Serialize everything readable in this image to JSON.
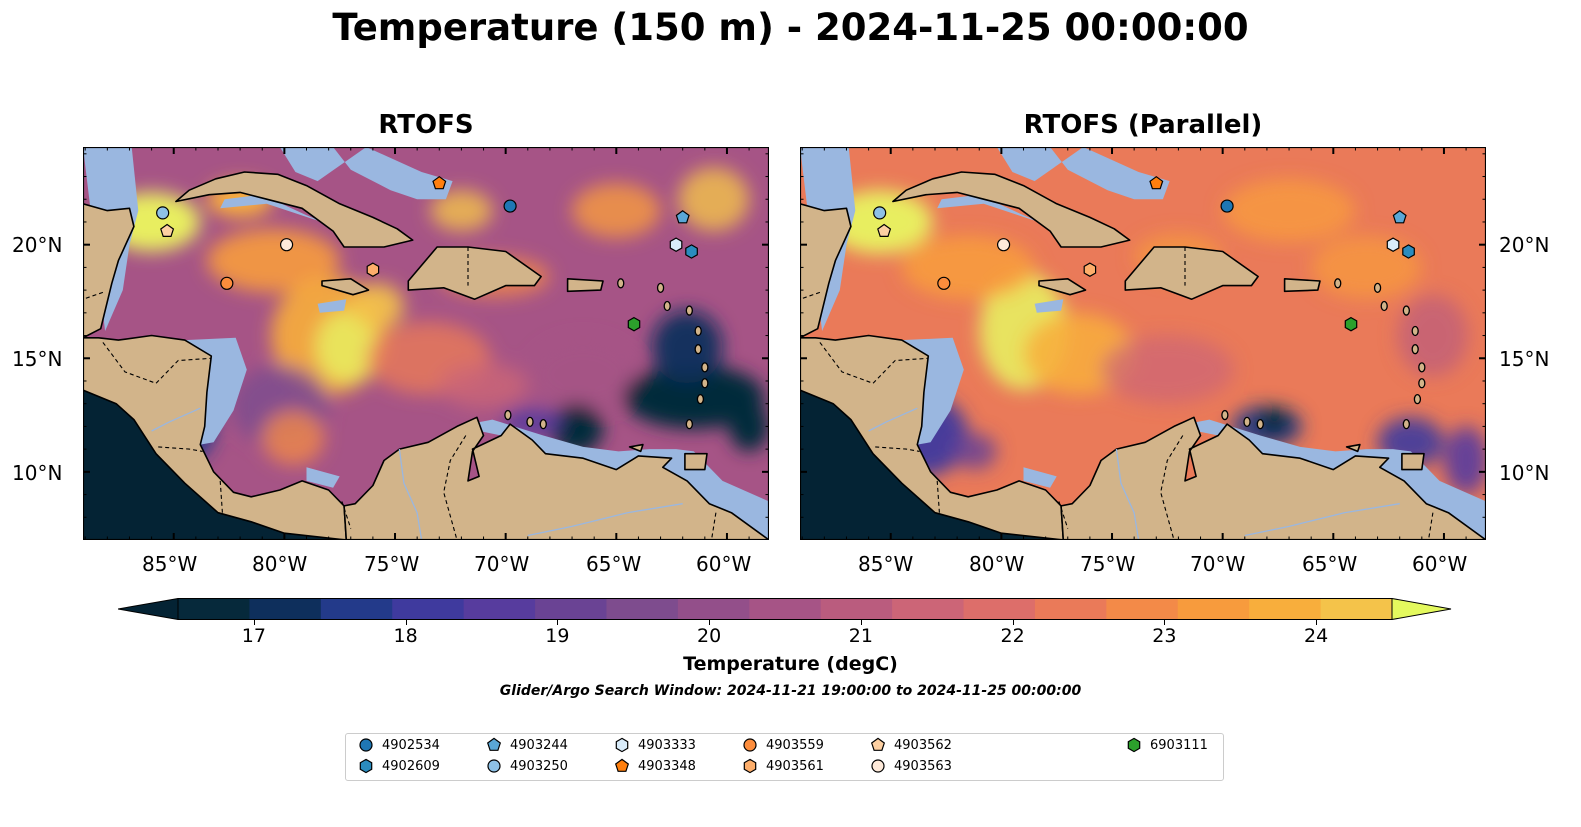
{
  "title": "Temperature (150 m) - 2024-11-25 00:00:00",
  "panels": [
    {
      "title": "RTOFS"
    },
    {
      "title": "RTOFS (Parallel)"
    }
  ],
  "axes": {
    "lon_ticks": [
      "85°W",
      "80°W",
      "75°W",
      "70°W",
      "65°W",
      "60°W"
    ],
    "lat_ticks": [
      "20°N",
      "15°N",
      "10°N"
    ]
  },
  "colorbar": {
    "label": "Temperature (degC)",
    "ticks": [
      "17",
      "18",
      "19",
      "20",
      "21",
      "22",
      "23",
      "24"
    ],
    "range": [
      17,
      24.5
    ],
    "extend": "both",
    "colors": [
      "#06293b",
      "#0e2f5c",
      "#233a8a",
      "#3f3a9e",
      "#573c9e",
      "#6a4394",
      "#7e4c8e",
      "#934f8a",
      "#a65486",
      "#ba5c7e",
      "#cc6577",
      "#dd6e6a",
      "#ea7a59",
      "#f38a48",
      "#f79b3d",
      "#f8ae3c",
      "#f4c34a",
      "#e8ee60"
    ],
    "under_color": "#042334",
    "over_color": "#e4f95e"
  },
  "search_window": "Glider/Argo Search Window: 2024-11-21 19:00:00 to 2024-11-25 00:00:00",
  "land_color": "#d2b48a",
  "shelf_color": "#9ab7e0",
  "floats": [
    {
      "id": "4902534",
      "marker": "circle",
      "color": "#1f77b4",
      "lon": -69.8,
      "lat": 21.7
    },
    {
      "id": "4902609",
      "marker": "hexagon",
      "color": "#2b8cbe",
      "lon": -61.6,
      "lat": 19.7
    },
    {
      "id": "4903244",
      "marker": "pentagon",
      "color": "#5aa7d6",
      "lon": -62.0,
      "lat": 21.2
    },
    {
      "id": "4903250",
      "marker": "circle",
      "color": "#8ec1e6",
      "lon": -85.5,
      "lat": 21.4
    },
    {
      "id": "4903333",
      "marker": "hexagon",
      "color": "#d9ecfa",
      "lon": -62.3,
      "lat": 20.0
    },
    {
      "id": "4903348",
      "marker": "pentagon",
      "color": "#ff7f0e",
      "lon": -73.0,
      "lat": 22.7
    },
    {
      "id": "4903559",
      "marker": "circle",
      "color": "#fd8d3c",
      "lon": -82.6,
      "lat": 18.3
    },
    {
      "id": "4903561",
      "marker": "hexagon",
      "color": "#fdae6b",
      "lon": -76.0,
      "lat": 18.9
    },
    {
      "id": "4903562",
      "marker": "pentagon",
      "color": "#fdd0a2",
      "lon": -85.3,
      "lat": 20.6
    },
    {
      "id": "4903563",
      "marker": "circle",
      "color": "#feeada",
      "lon": -79.9,
      "lat": 20.0
    },
    {
      "id": "6903111",
      "marker": "hexagon",
      "color": "#2ca02c",
      "lon": -64.2,
      "lat": 16.5
    }
  ]
}
